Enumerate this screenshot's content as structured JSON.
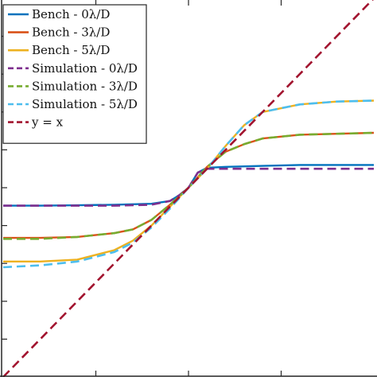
{
  "chart_data": {
    "type": "line",
    "title": "",
    "xlabel": "",
    "ylabel": "",
    "xlim": [
      -1,
      1
    ],
    "ylim": [
      -1,
      1
    ],
    "grid": false,
    "legend_position": "top-left",
    "series": [
      {
        "name": "Bench - 0λ/D",
        "color": "#0072BD",
        "dash": "solid",
        "x": [
          -1,
          -0.8,
          -0.6,
          -0.4,
          -0.2,
          -0.1,
          -0.05,
          0,
          0.05,
          0.1,
          0.2,
          0.4,
          0.6,
          0.8,
          1
        ],
        "y": [
          -0.095,
          -0.095,
          -0.093,
          -0.09,
          -0.085,
          -0.07,
          -0.04,
          0,
          0.08,
          0.105,
          0.11,
          0.115,
          0.12,
          0.12,
          0.12
        ]
      },
      {
        "name": "Bench - 3λ/D",
        "color": "#D95319",
        "dash": "solid",
        "x": [
          -1,
          -0.8,
          -0.6,
          -0.4,
          -0.3,
          -0.2,
          -0.1,
          0,
          0.1,
          0.2,
          0.3,
          0.4,
          0.6,
          0.8,
          1
        ],
        "y": [
          -0.265,
          -0.265,
          -0.26,
          -0.24,
          -0.22,
          -0.17,
          -0.09,
          0,
          0.11,
          0.19,
          0.23,
          0.26,
          0.28,
          0.285,
          0.29
        ]
      },
      {
        "name": "Bench - 5λ/D",
        "color": "#EDB120",
        "dash": "solid",
        "x": [
          -1,
          -0.8,
          -0.6,
          -0.4,
          -0.3,
          -0.2,
          -0.1,
          0,
          0.1,
          0.2,
          0.3,
          0.4,
          0.6,
          0.8,
          1
        ],
        "y": [
          -0.39,
          -0.39,
          -0.38,
          -0.33,
          -0.28,
          -0.2,
          -0.1,
          0,
          0.1,
          0.22,
          0.33,
          0.4,
          0.44,
          0.455,
          0.46
        ]
      },
      {
        "name": "Simulation - 0λ/D",
        "color": "#7E2F8E",
        "dash": "dashed",
        "x": [
          -1,
          -0.8,
          -0.6,
          -0.4,
          -0.2,
          -0.1,
          -0.05,
          0,
          0.05,
          0.1,
          0.2,
          0.4,
          0.6,
          0.8,
          1
        ],
        "y": [
          -0.095,
          -0.095,
          -0.095,
          -0.095,
          -0.09,
          -0.07,
          -0.04,
          0,
          0.08,
          0.1,
          0.1,
          0.1,
          0.1,
          0.1,
          0.1
        ]
      },
      {
        "name": "Simulation - 3λ/D",
        "color": "#77AC30",
        "dash": "dashed",
        "x": [
          -1,
          -0.8,
          -0.6,
          -0.4,
          -0.3,
          -0.2,
          -0.1,
          0,
          0.1,
          0.2,
          0.3,
          0.4,
          0.6,
          0.8,
          1
        ],
        "y": [
          -0.27,
          -0.27,
          -0.26,
          -0.24,
          -0.22,
          -0.17,
          -0.09,
          0,
          0.11,
          0.19,
          0.23,
          0.26,
          0.28,
          0.285,
          0.29
        ]
      },
      {
        "name": "Simulation - 5λ/D",
        "color": "#4DBEEE",
        "dash": "dashed",
        "x": [
          -1,
          -0.8,
          -0.6,
          -0.4,
          -0.3,
          -0.2,
          -0.1,
          0,
          0.1,
          0.2,
          0.3,
          0.4,
          0.6,
          0.8,
          1
        ],
        "y": [
          -0.42,
          -0.41,
          -0.39,
          -0.34,
          -0.29,
          -0.21,
          -0.11,
          0,
          0.1,
          0.22,
          0.33,
          0.4,
          0.44,
          0.455,
          0.46
        ]
      },
      {
        "name": "y = x",
        "color": "#A2142F",
        "dash": "dashed",
        "x": [
          -1,
          1
        ],
        "y": [
          -1,
          1
        ]
      }
    ]
  }
}
